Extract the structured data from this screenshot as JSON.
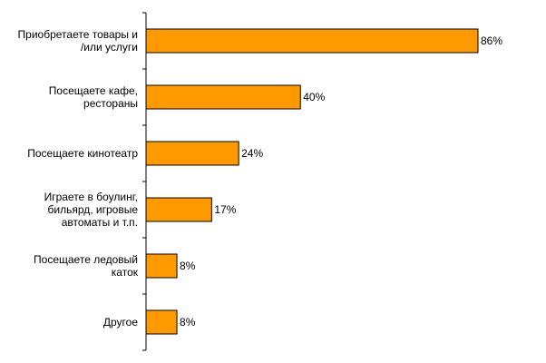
{
  "chart_data": {
    "type": "bar",
    "orientation": "horizontal",
    "categories": [
      "Приобретаете товары и\n/или услуги",
      "Посещаете кафе,\nрестораны",
      "Посещаете кинотеатр",
      "Играете в боулинг,\nбильярд, игровые\nавтоматы и т.п.",
      "Посещаете ледовый\nкаток",
      "Другое"
    ],
    "values": [
      86,
      40,
      24,
      17,
      8,
      8
    ],
    "value_labels": [
      "86%",
      "40%",
      "24%",
      "17%",
      "8%",
      "8%"
    ],
    "color": "#ff9900"
  }
}
